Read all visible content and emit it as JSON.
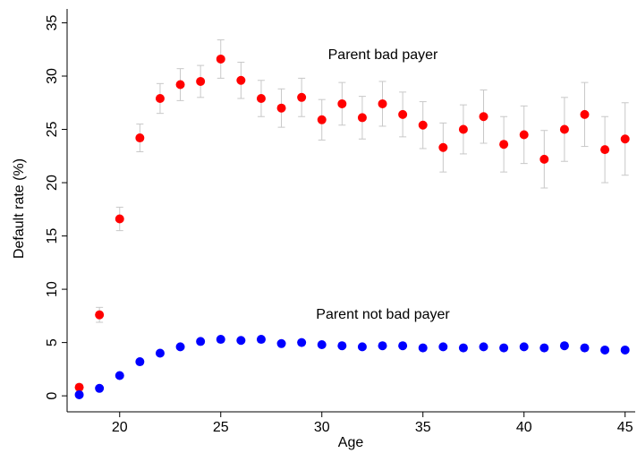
{
  "chart_data": {
    "type": "scatter",
    "x_label": "Age",
    "y_label": "Default rate (%)",
    "annotations": [
      "Parent bad payer",
      "Parent not bad payer"
    ],
    "x": [
      18,
      19,
      20,
      21,
      22,
      23,
      24,
      25,
      26,
      27,
      28,
      29,
      30,
      31,
      32,
      33,
      34,
      35,
      36,
      37,
      38,
      39,
      40,
      41,
      42,
      43,
      44,
      45
    ],
    "series": [
      {
        "color": "#ff0000",
        "error_color": "#c8c8c8",
        "values": [
          0.8,
          7.6,
          16.6,
          24.2,
          27.9,
          29.2,
          29.5,
          31.6,
          29.6,
          27.9,
          27.0,
          28.0,
          25.9,
          27.4,
          26.1,
          27.4,
          26.4,
          25.4,
          23.3,
          25.0,
          26.2,
          23.6,
          24.5,
          22.2,
          25.0,
          26.4,
          23.1,
          24.1
        ],
        "errors": [
          0.3,
          0.7,
          1.1,
          1.3,
          1.4,
          1.5,
          1.5,
          1.8,
          1.7,
          1.7,
          1.8,
          1.8,
          1.9,
          2.0,
          2.0,
          2.1,
          2.1,
          2.2,
          2.3,
          2.3,
          2.5,
          2.6,
          2.7,
          2.7,
          3.0,
          3.0,
          3.1,
          3.4
        ]
      },
      {
        "color": "#0000ff",
        "values": [
          0.1,
          0.7,
          1.9,
          3.2,
          4.0,
          4.6,
          5.1,
          5.3,
          5.2,
          5.3,
          4.9,
          5.0,
          4.8,
          4.7,
          4.6,
          4.7,
          4.7,
          4.5,
          4.6,
          4.5,
          4.6,
          4.5,
          4.6,
          4.5,
          4.7,
          4.5,
          4.3,
          4.3
        ]
      }
    ],
    "xlim": [
      17.4,
      45.5
    ],
    "ylim": [
      -1.5,
      36.3
    ],
    "xticks": [
      20,
      25,
      30,
      35,
      40,
      45
    ],
    "yticks": [
      0,
      5,
      10,
      15,
      20,
      25,
      30,
      35
    ]
  }
}
